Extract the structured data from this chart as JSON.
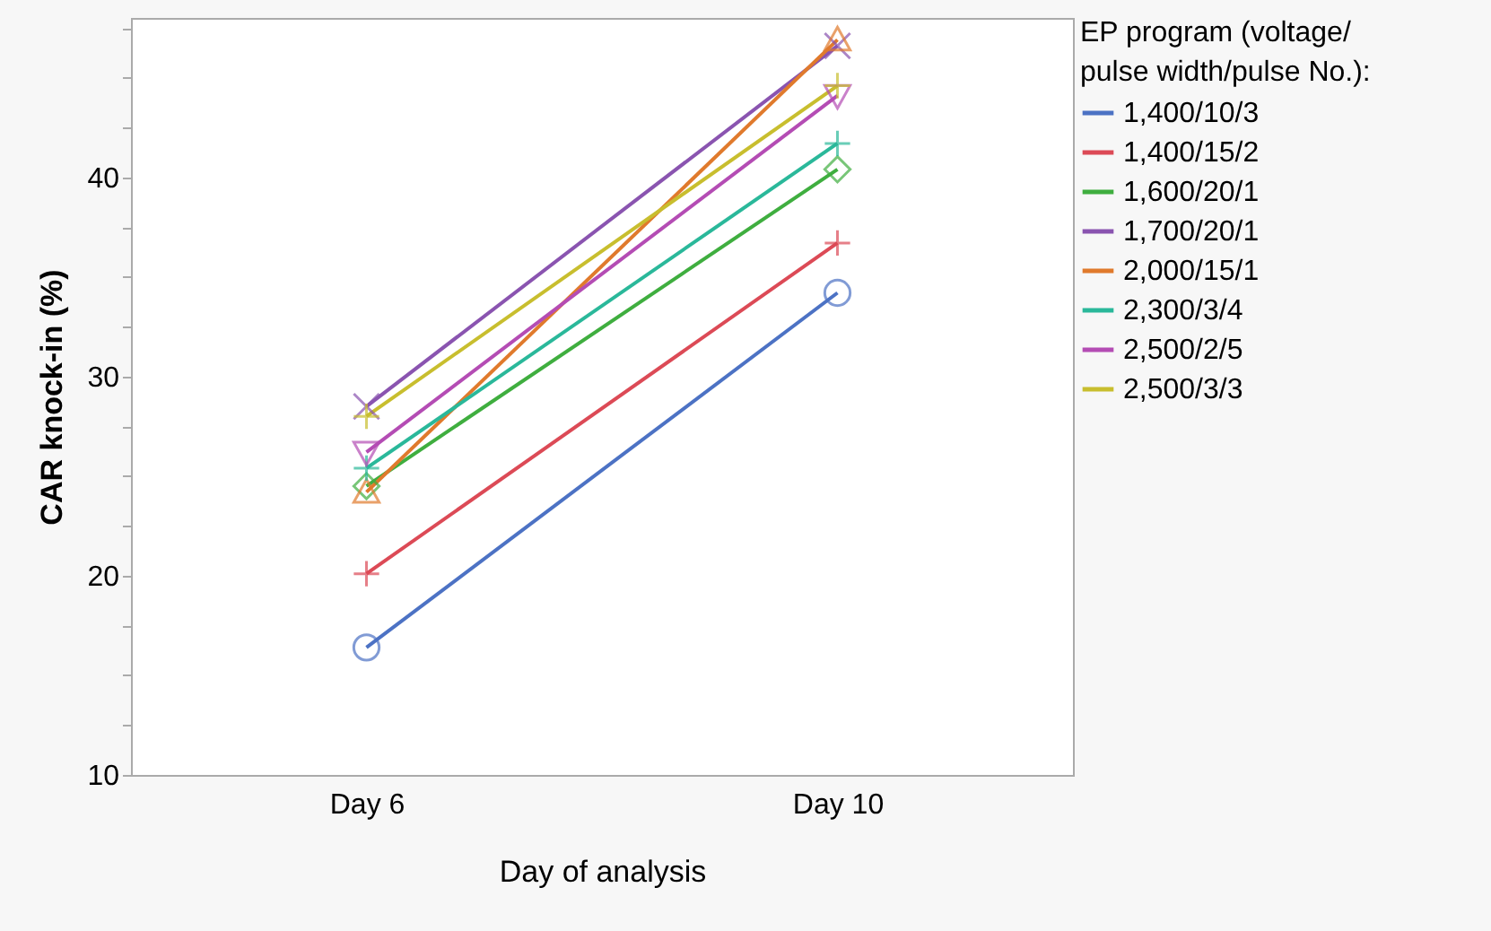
{
  "chart_data": {
    "type": "line",
    "xlabel": "Day of analysis",
    "ylabel": "CAR knock-in (%)",
    "legend_title": "EP program (voltage/pulse width/pulse No.):",
    "legend": "right",
    "grid": false,
    "categories": [
      "Day 6",
      "Day 10"
    ],
    "ylim": [
      10,
      48
    ],
    "yticks": [
      10,
      {
        "value": 12.5,
        "label": null
      },
      {
        "value": 15,
        "label": null
      },
      {
        "value": 17.5,
        "label": null
      },
      20,
      {
        "value": 22.5,
        "label": null
      },
      {
        "value": 25,
        "label": null
      },
      {
        "value": 27.5,
        "label": null
      },
      30,
      {
        "value": 32.5,
        "label": null
      },
      {
        "value": 35,
        "label": null
      },
      {
        "value": 37.5,
        "label": null
      },
      40,
      {
        "value": 42.5,
        "label": null
      },
      {
        "value": 45,
        "label": null
      },
      {
        "value": 47.5,
        "label": null
      }
    ],
    "series": [
      {
        "name": "1,400/10/3",
        "color": "#4c72c4",
        "marker": "circle",
        "values": [
          16.4,
          34.2
        ]
      },
      {
        "name": "1,400/15/2",
        "color": "#dc4a56",
        "marker": "cross",
        "values": [
          20.1,
          36.7
        ]
      },
      {
        "name": "1,600/20/1",
        "color": "#3fae3f",
        "marker": "diamond",
        "values": [
          24.5,
          40.4
        ]
      },
      {
        "name": "1,700/20/1",
        "color": "#8a54b0",
        "marker": "x",
        "values": [
          28.5,
          46.6
        ]
      },
      {
        "name": "2,000/15/1",
        "color": "#e07a2c",
        "marker": "triangle",
        "values": [
          24.2,
          46.9
        ]
      },
      {
        "name": "2,300/3/4",
        "color": "#2ab89a",
        "marker": "cross",
        "values": [
          25.4,
          41.7
        ]
      },
      {
        "name": "2,500/2/5",
        "color": "#b44cb4",
        "marker": "triangle-down",
        "values": [
          26.2,
          44.1
        ]
      },
      {
        "name": "2,500/3/3",
        "color": "#c8be2e",
        "marker": "cross",
        "values": [
          28.0,
          44.6
        ]
      }
    ]
  }
}
